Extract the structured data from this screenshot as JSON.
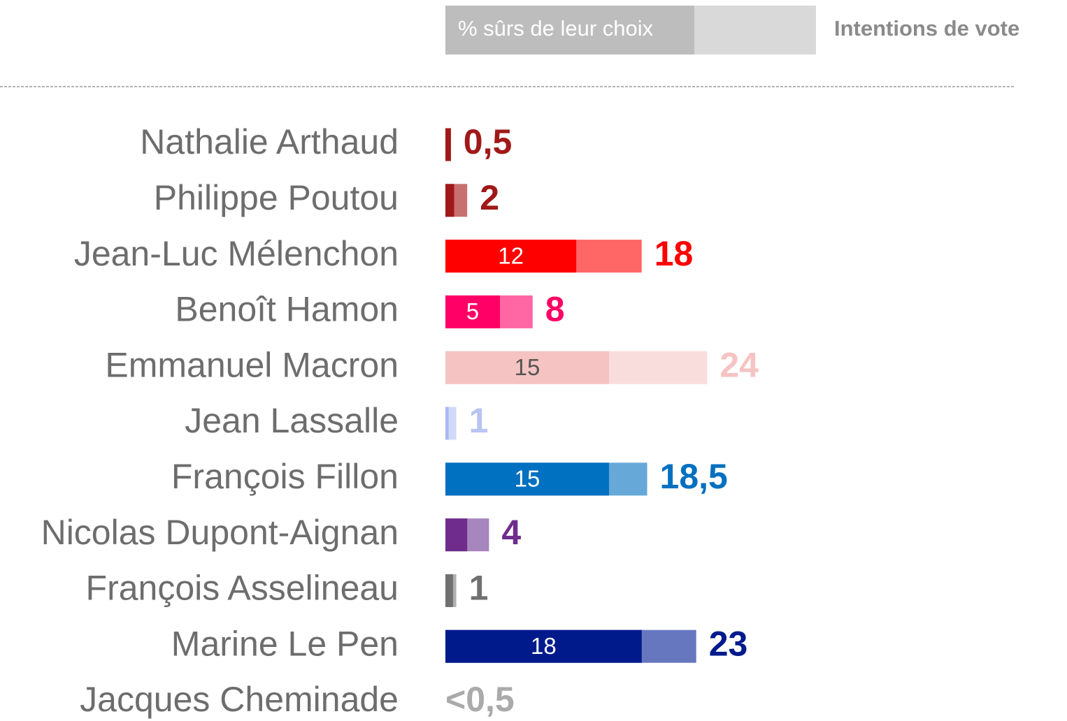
{
  "chart_data": {
    "type": "bar",
    "orientation": "horizontal",
    "categories": [
      "Nathalie Arthaud",
      "Philippe Poutou",
      "Jean-Luc Mélenchon",
      "Benoît Hamon",
      "Emmanuel Macron",
      "Jean Lassalle",
      "François Fillon",
      "Nicolas Dupont-Aignan",
      "François Asselineau",
      "Marine Le Pen",
      "Jacques Cheminade"
    ],
    "xlim": [
      0,
      57
    ],
    "series": [
      {
        "name": "Intentions de vote",
        "color": "#d9d9d9",
        "colors": [
          "#a01818",
          "#c87070",
          "#ff6666",
          "#ff66a3",
          "#f9dcdc",
          "#d0daf8",
          "#66a8d8",
          "#a785bd",
          "#b0b0b0",
          "#6677bf",
          "#aaaaaa"
        ],
        "label_colors": [
          "#a01818",
          "#a01818",
          "#ff0000",
          "#ff0066",
          "#f6c3c3",
          "#b8c4f2",
          "#0070c0",
          "#6f2c8c",
          "#707070",
          "#001a8c",
          "#aaaaaa"
        ],
        "values": [
          0.5,
          2,
          18,
          8,
          24,
          1,
          18.5,
          4,
          1,
          23,
          null
        ],
        "value_labels": [
          "0,5",
          "2",
          "18",
          "8",
          "24",
          "1",
          "18,5",
          "4",
          "1",
          "23",
          "<0,5"
        ]
      },
      {
        "name": "% sûrs de leur choix",
        "color": "#bdbdbd",
        "colors": [
          "#a01818",
          "#a01818",
          "#ff0000",
          "#ff0066",
          "#f6c3c3",
          "#aab8f0",
          "#0070c0",
          "#6f2c8c",
          "#707070",
          "#001a8c",
          "#aaaaaa"
        ],
        "label_colors": [
          "#ffffff",
          "#ffffff",
          "#ffffff",
          "#ffffff",
          "#555555",
          "#ffffff",
          "#ffffff",
          "#ffffff",
          "#ffffff",
          "#ffffff",
          "#ffffff"
        ],
        "values": [
          0.5,
          0.8,
          12,
          5,
          15,
          0.3,
          15,
          2,
          0.7,
          18,
          null
        ],
        "value_labels": [
          null,
          null,
          "12",
          "5",
          "15",
          null,
          "15",
          null,
          null,
          "18",
          null
        ]
      }
    ]
  }
}
